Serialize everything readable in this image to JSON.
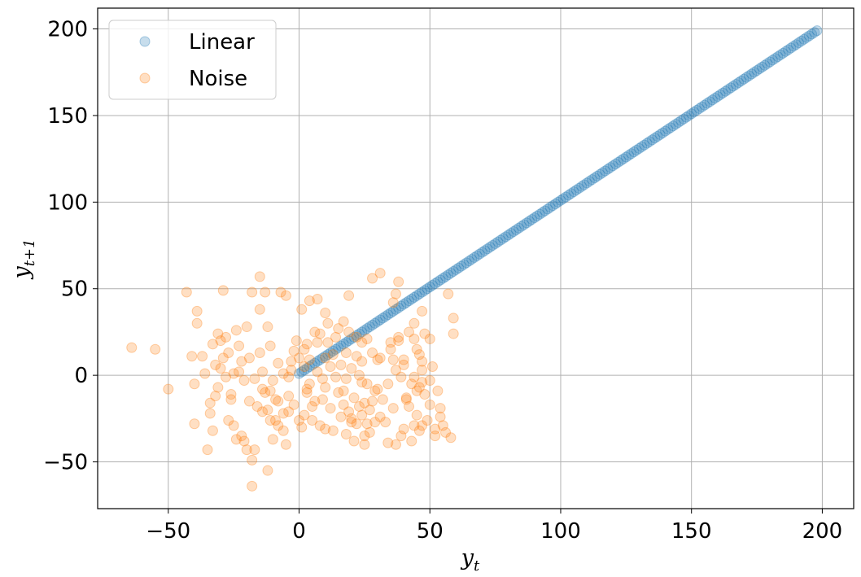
{
  "chart_data": {
    "type": "scatter",
    "title": "",
    "xlabel": "y_t",
    "ylabel": "y_{t+1}",
    "xlabel_parts": {
      "base": "y",
      "sub": "t"
    },
    "ylabel_parts": {
      "base": "y",
      "sub": "t+1"
    },
    "xlim": [
      -77,
      212
    ],
    "ylim": [
      -77,
      212
    ],
    "xticks": [
      -50,
      0,
      50,
      100,
      150,
      200
    ],
    "yticks": [
      -50,
      0,
      50,
      100,
      150,
      200
    ],
    "xtick_labels": [
      "−50",
      "0",
      "50",
      "100",
      "150",
      "200"
    ],
    "ytick_labels": [
      "−50",
      "0",
      "50",
      "100",
      "150",
      "200"
    ],
    "grid": true,
    "legend_position": "top-left",
    "series": [
      {
        "name": "Linear",
        "color": "#1f77b4",
        "note_generated": "integer points y_t = 0..198, y_{t+1} = y_t + 1",
        "x": [
          0,
          1,
          2,
          3,
          4,
          5,
          6,
          7,
          8,
          9,
          10,
          11,
          12,
          13,
          14,
          15,
          16,
          17,
          18,
          19,
          20,
          21,
          22,
          23,
          24,
          25,
          26,
          27,
          28,
          29,
          30,
          31,
          32,
          33,
          34,
          35,
          36,
          37,
          38,
          39,
          40,
          41,
          42,
          43,
          44,
          45,
          46,
          47,
          48,
          49,
          50,
          51,
          52,
          53,
          54,
          55,
          56,
          57,
          58,
          59,
          60,
          61,
          62,
          63,
          64,
          65,
          66,
          67,
          68,
          69,
          70,
          71,
          72,
          73,
          74,
          75,
          76,
          77,
          78,
          79,
          80,
          81,
          82,
          83,
          84,
          85,
          86,
          87,
          88,
          89,
          90,
          91,
          92,
          93,
          94,
          95,
          96,
          97,
          98,
          99,
          100,
          101,
          102,
          103,
          104,
          105,
          106,
          107,
          108,
          109,
          110,
          111,
          112,
          113,
          114,
          115,
          116,
          117,
          118,
          119,
          120,
          121,
          122,
          123,
          124,
          125,
          126,
          127,
          128,
          129,
          130,
          131,
          132,
          133,
          134,
          135,
          136,
          137,
          138,
          139,
          140,
          141,
          142,
          143,
          144,
          145,
          146,
          147,
          148,
          149,
          150,
          151,
          152,
          153,
          154,
          155,
          156,
          157,
          158,
          159,
          160,
          161,
          162,
          163,
          164,
          165,
          166,
          167,
          168,
          169,
          170,
          171,
          172,
          173,
          174,
          175,
          176,
          177,
          178,
          179,
          180,
          181,
          182,
          183,
          184,
          185,
          186,
          187,
          188,
          189,
          190,
          191,
          192,
          193,
          194,
          195,
          196,
          197,
          198
        ],
        "y": [
          1,
          2,
          3,
          4,
          5,
          6,
          7,
          8,
          9,
          10,
          11,
          12,
          13,
          14,
          15,
          16,
          17,
          18,
          19,
          20,
          21,
          22,
          23,
          24,
          25,
          26,
          27,
          28,
          29,
          30,
          31,
          32,
          33,
          34,
          35,
          36,
          37,
          38,
          39,
          40,
          41,
          42,
          43,
          44,
          45,
          46,
          47,
          48,
          49,
          50,
          51,
          52,
          53,
          54,
          55,
          56,
          57,
          58,
          59,
          60,
          61,
          62,
          63,
          64,
          65,
          66,
          67,
          68,
          69,
          70,
          71,
          72,
          73,
          74,
          75,
          76,
          77,
          78,
          79,
          80,
          81,
          82,
          83,
          84,
          85,
          86,
          87,
          88,
          89,
          90,
          91,
          92,
          93,
          94,
          95,
          96,
          97,
          98,
          99,
          100,
          101,
          102,
          103,
          104,
          105,
          106,
          107,
          108,
          109,
          110,
          111,
          112,
          113,
          114,
          115,
          116,
          117,
          118,
          119,
          120,
          121,
          122,
          123,
          124,
          125,
          126,
          127,
          128,
          129,
          130,
          131,
          132,
          133,
          134,
          135,
          136,
          137,
          138,
          139,
          140,
          141,
          142,
          143,
          144,
          145,
          146,
          147,
          148,
          149,
          150,
          151,
          152,
          153,
          154,
          155,
          156,
          157,
          158,
          159,
          160,
          161,
          162,
          163,
          164,
          165,
          166,
          167,
          168,
          169,
          170,
          171,
          172,
          173,
          174,
          175,
          176,
          177,
          178,
          179,
          180,
          181,
          182,
          183,
          184,
          185,
          186,
          187,
          188,
          189,
          190,
          191,
          192,
          193,
          194,
          195,
          196,
          197,
          198,
          199
        ]
      },
      {
        "name": "Noise",
        "color": "#ff7f0e",
        "points": [
          [
            -64,
            16
          ],
          [
            -55,
            15
          ],
          [
            -50,
            -8
          ],
          [
            -43,
            48
          ],
          [
            -41,
            11
          ],
          [
            -40,
            -5
          ],
          [
            -40,
            -28
          ],
          [
            -39,
            37
          ],
          [
            -39,
            30
          ],
          [
            -37,
            11
          ],
          [
            -36,
            1
          ],
          [
            -35,
            -43
          ],
          [
            -34,
            -16
          ],
          [
            -33,
            -32
          ],
          [
            -32,
            -12
          ],
          [
            -31,
            24
          ],
          [
            -30,
            20
          ],
          [
            -29,
            10
          ],
          [
            -29,
            49
          ],
          [
            -28,
            22
          ],
          [
            -28,
            -1
          ],
          [
            -27,
            13
          ],
          [
            -26,
            -11
          ],
          [
            -25,
            1
          ],
          [
            -25,
            -29
          ],
          [
            -24,
            26
          ],
          [
            -24,
            -37
          ],
          [
            -23,
            17
          ],
          [
            -22,
            -35
          ],
          [
            -22,
            8
          ],
          [
            -21,
            -38
          ],
          [
            -20,
            28
          ],
          [
            -19,
            10
          ],
          [
            -19,
            -15
          ],
          [
            -18,
            48
          ],
          [
            -18,
            -49
          ],
          [
            -18,
            -64
          ],
          [
            -17,
            -2
          ],
          [
            -17,
            -43
          ],
          [
            -16,
            -18
          ],
          [
            -15,
            13
          ],
          [
            -15,
            57
          ],
          [
            -15,
            38
          ],
          [
            -14,
            -21
          ],
          [
            -14,
            2
          ],
          [
            -14,
            -8
          ],
          [
            -13,
            -10
          ],
          [
            -13,
            48
          ],
          [
            -12,
            28
          ],
          [
            -12,
            -20
          ],
          [
            -12,
            -55
          ],
          [
            -11,
            17
          ],
          [
            -11,
            -26
          ],
          [
            -11,
            -9
          ],
          [
            -10,
            -3
          ],
          [
            -9,
            -14
          ],
          [
            -8,
            7
          ],
          [
            -8,
            -29
          ],
          [
            -7,
            48
          ],
          [
            -6,
            1
          ],
          [
            -6,
            -32
          ],
          [
            -5,
            46
          ],
          [
            -5,
            -40
          ],
          [
            -4,
            -1
          ],
          [
            -4,
            -21
          ],
          [
            -3,
            8
          ],
          [
            -3,
            3
          ],
          [
            -2,
            -17
          ],
          [
            -1,
            20
          ],
          [
            0,
            -26
          ],
          [
            0,
            10
          ],
          [
            1,
            38
          ],
          [
            2,
            -23
          ],
          [
            2,
            15
          ],
          [
            3,
            18
          ],
          [
            3,
            -10
          ],
          [
            4,
            -5
          ],
          [
            4,
            43
          ],
          [
            4,
            9
          ],
          [
            5,
            -26
          ],
          [
            6,
            25
          ],
          [
            6,
            -15
          ],
          [
            7,
            2
          ],
          [
            7,
            44
          ],
          [
            8,
            -29
          ],
          [
            9,
            -14
          ],
          [
            10,
            36
          ],
          [
            10,
            10
          ],
          [
            10,
            -7
          ],
          [
            10,
            -31
          ],
          [
            11,
            30
          ],
          [
            11,
            19
          ],
          [
            12,
            5
          ],
          [
            12,
            -19
          ],
          [
            13,
            12
          ],
          [
            13,
            -32
          ],
          [
            14,
            -1
          ],
          [
            14,
            22
          ],
          [
            15,
            -10
          ],
          [
            15,
            27
          ],
          [
            16,
            6
          ],
          [
            16,
            -24
          ],
          [
            17,
            31
          ],
          [
            17,
            -17
          ],
          [
            18,
            13
          ],
          [
            18,
            -2
          ],
          [
            19,
            25
          ],
          [
            19,
            -21
          ],
          [
            19,
            46
          ],
          [
            20,
            -27
          ],
          [
            20,
            4
          ],
          [
            21,
            -13
          ],
          [
            21,
            -38
          ],
          [
            22,
            22
          ],
          [
            22,
            -28
          ],
          [
            23,
            0
          ],
          [
            24,
            19
          ],
          [
            24,
            -4
          ],
          [
            25,
            -16
          ],
          [
            25,
            -40
          ],
          [
            26,
            21
          ],
          [
            26,
            -5
          ],
          [
            27,
            -20
          ],
          [
            27,
            -33
          ],
          [
            28,
            13
          ],
          [
            28,
            56
          ],
          [
            29,
            -27
          ],
          [
            30,
            9
          ],
          [
            30,
            -8
          ],
          [
            31,
            10
          ],
          [
            31,
            -24
          ],
          [
            31,
            59
          ],
          [
            32,
            -14
          ],
          [
            33,
            -27
          ],
          [
            34,
            -39
          ],
          [
            34,
            -5
          ],
          [
            35,
            19
          ],
          [
            36,
            -19
          ],
          [
            37,
            -40
          ],
          [
            38,
            22
          ],
          [
            38,
            54
          ],
          [
            39,
            -1
          ],
          [
            39,
            -35
          ],
          [
            40,
            6
          ],
          [
            40,
            -31
          ],
          [
            40,
            9
          ],
          [
            41,
            -13
          ],
          [
            42,
            -18
          ],
          [
            43,
            -38
          ],
          [
            44,
            21
          ],
          [
            44,
            -1
          ],
          [
            45,
            -9
          ],
          [
            45,
            -23
          ],
          [
            46,
            12
          ],
          [
            46,
            -32
          ],
          [
            47,
            3
          ],
          [
            47,
            8
          ],
          [
            47,
            -4
          ],
          [
            47,
            -29
          ],
          [
            48,
            -11
          ],
          [
            49,
            -26
          ],
          [
            50,
            -17
          ],
          [
            50,
            21
          ],
          [
            50,
            -3
          ],
          [
            51,
            5
          ],
          [
            52,
            -31
          ],
          [
            52,
            -35
          ],
          [
            53,
            -9
          ],
          [
            54,
            -19
          ],
          [
            54,
            -24
          ],
          [
            55,
            -29
          ],
          [
            56,
            -33
          ],
          [
            57,
            47
          ],
          [
            58,
            -36
          ],
          [
            59,
            33
          ],
          [
            59,
            24
          ],
          [
            37,
            47
          ],
          [
            38,
            20
          ],
          [
            36,
            42
          ],
          [
            37,
            3
          ],
          [
            36,
            9
          ],
          [
            35,
            15
          ],
          [
            24,
            8
          ],
          [
            23,
            -18
          ],
          [
            22,
            11
          ],
          [
            20,
            -25
          ],
          [
            18,
            -34
          ],
          [
            17,
            -9
          ],
          [
            9,
            -2
          ],
          [
            8,
            24
          ],
          [
            7,
            19
          ],
          [
            5,
            -18
          ],
          [
            3,
            -8
          ],
          [
            2,
            5
          ],
          [
            1,
            -30
          ],
          [
            -2,
            14
          ],
          [
            -4,
            -12
          ],
          [
            -6,
            -22
          ],
          [
            -8,
            -15
          ],
          [
            -9,
            -26
          ],
          [
            -10,
            -37
          ],
          [
            -20,
            -43
          ],
          [
            -21,
            -3
          ],
          [
            -23,
            2
          ],
          [
            -26,
            -14
          ],
          [
            -27,
            -26
          ],
          [
            -30,
            4
          ],
          [
            -31,
            -7
          ],
          [
            -33,
            18
          ],
          [
            -32,
            6
          ],
          [
            -34,
            -22
          ],
          [
            29,
            -9
          ],
          [
            28,
            -15
          ],
          [
            26,
            -28
          ],
          [
            25,
            -35
          ],
          [
            24,
            -23
          ],
          [
            43,
            -5
          ],
          [
            44,
            -29
          ],
          [
            46,
            -7
          ],
          [
            47,
            37
          ],
          [
            48,
            24
          ],
          [
            45,
            15
          ],
          [
            44,
            30
          ],
          [
            42,
            25
          ],
          [
            41,
            -14
          ]
        ]
      }
    ]
  }
}
